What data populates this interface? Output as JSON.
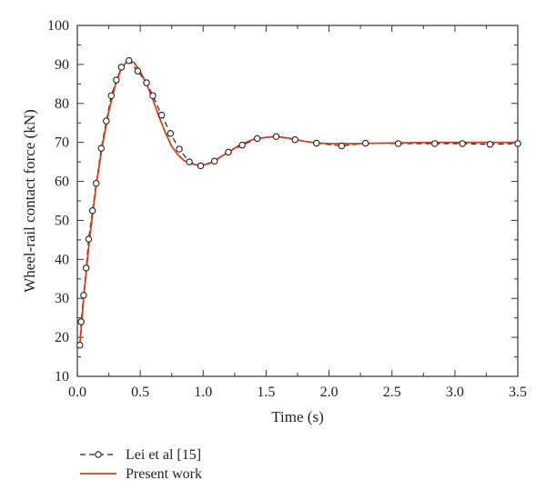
{
  "chart_data": {
    "type": "line",
    "title": "",
    "xlabel": "Time (s)",
    "ylabel": "Wheel-rail contact force (kN)",
    "xlim": [
      0,
      3.5
    ],
    "ylim": [
      10,
      100
    ],
    "x_ticks": [
      0.0,
      0.5,
      1.0,
      1.5,
      2.0,
      2.5,
      3.0,
      3.5
    ],
    "x_tick_labels": [
      "0.0",
      "0.5",
      "1.0",
      "1.5",
      "2.0",
      "2.5",
      "3.0",
      "3.5"
    ],
    "y_ticks": [
      10,
      20,
      30,
      40,
      50,
      60,
      70,
      80,
      90,
      100
    ],
    "y_tick_labels": [
      "10",
      "20",
      "30",
      "40",
      "50",
      "60",
      "70",
      "80",
      "90",
      "100"
    ],
    "grid": false,
    "legend": {
      "placement": "bottom-left, below plot"
    },
    "series": [
      {
        "name": "Lei et al [15]",
        "style": "dashed line with open circle markers",
        "color": "#222222",
        "x": [
          0.02,
          0.03,
          0.05,
          0.07,
          0.09,
          0.12,
          0.15,
          0.19,
          0.23,
          0.27,
          0.31,
          0.35,
          0.41,
          0.48,
          0.55,
          0.6,
          0.67,
          0.74,
          0.81,
          0.89,
          0.98,
          1.09,
          1.2,
          1.31,
          1.43,
          1.58,
          1.73,
          1.9,
          2.1,
          2.29,
          2.55,
          2.84,
          3.06,
          3.28,
          3.5
        ],
        "y": [
          18.0,
          24.0,
          30.8,
          37.8,
          45.2,
          52.5,
          59.5,
          68.5,
          75.5,
          82.0,
          86.0,
          89.3,
          91.0,
          88.3,
          85.3,
          82.0,
          77.0,
          72.3,
          68.3,
          65.0,
          64.0,
          65.2,
          67.5,
          69.3,
          71.0,
          71.5,
          70.7,
          69.8,
          69.1,
          69.8,
          69.7,
          69.7,
          69.7,
          69.5,
          69.7
        ]
      },
      {
        "name": "Present work",
        "style": "solid line",
        "color": "#d4401a",
        "x": [
          0.02,
          0.05,
          0.08,
          0.1,
          0.15,
          0.2,
          0.25,
          0.3,
          0.35,
          0.4,
          0.45,
          0.5,
          0.55,
          0.6,
          0.65,
          0.7,
          0.75,
          0.8,
          0.85,
          0.9,
          0.95,
          1.0,
          1.05,
          1.1,
          1.2,
          1.3,
          1.4,
          1.5,
          1.58,
          1.7,
          1.8,
          1.9,
          2.0,
          2.2,
          2.4,
          2.6,
          2.8,
          3.0,
          3.2,
          3.5
        ],
        "y": [
          18.0,
          30.0,
          40.0,
          46.0,
          59.0,
          69.5,
          78.0,
          84.5,
          89.0,
          91.0,
          90.5,
          88.2,
          85.0,
          81.0,
          76.5,
          72.5,
          69.0,
          66.8,
          65.3,
          64.6,
          64.2,
          64.2,
          64.6,
          65.5,
          67.5,
          69.5,
          70.8,
          71.3,
          71.5,
          71.0,
          70.3,
          69.9,
          69.7,
          69.7,
          69.8,
          69.9,
          70.0,
          70.0,
          70.0,
          70.0
        ]
      }
    ]
  }
}
